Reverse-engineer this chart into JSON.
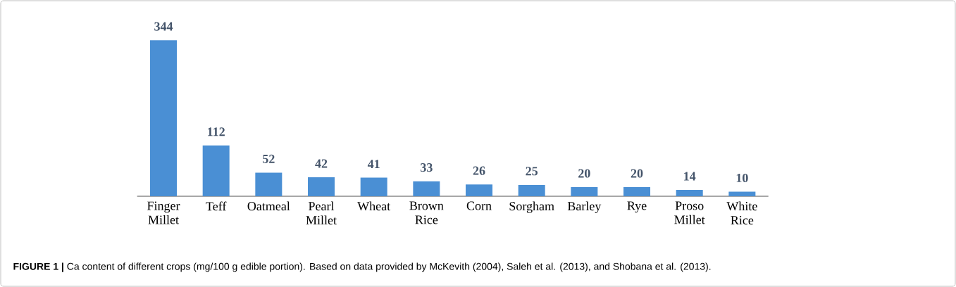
{
  "chart_data": {
    "type": "bar",
    "categories": [
      "Finger Millet",
      "Teff",
      "Oatmeal",
      "Pearl Millet",
      "Wheat",
      "Brown Rice",
      "Corn",
      "Sorgham",
      "Barley",
      "Rye",
      "Proso Millet",
      "White Rice"
    ],
    "values": [
      344,
      112,
      52,
      42,
      41,
      33,
      26,
      25,
      20,
      20,
      14,
      10
    ],
    "color": "#4a8fd4",
    "data_labels": true,
    "annotations": [
      "**FIGURE 1 |** Ca content of different crops (mg/100 g edible portion). Based on data provided by McKevith (2004), Saleh et al. (2013), and Shobana et al. (2013)."
    ]
  }
}
